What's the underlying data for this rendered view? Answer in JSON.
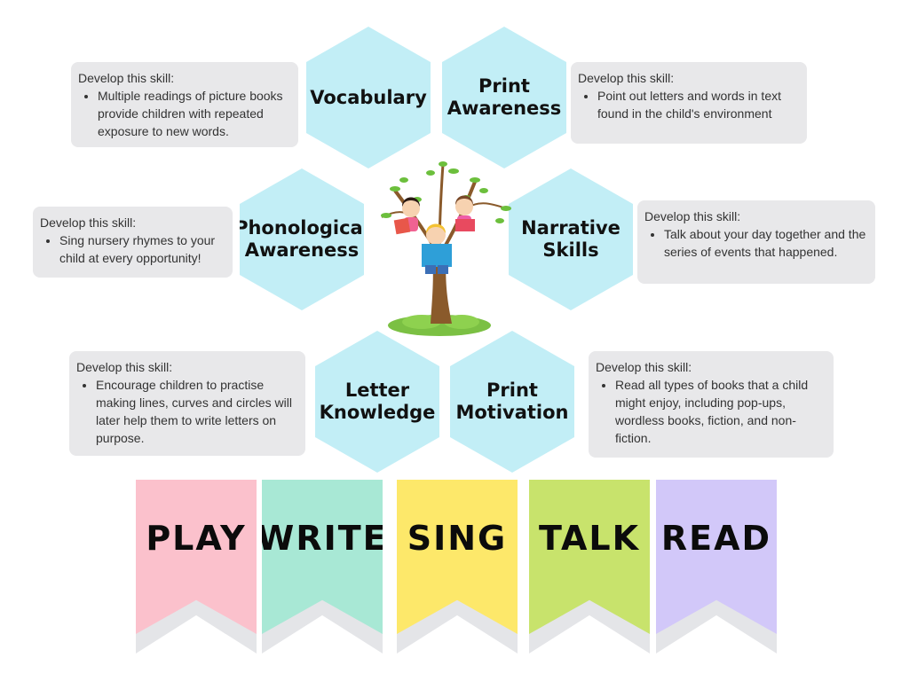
{
  "skills": [
    {
      "id": "vocabulary",
      "title": "Vocabulary",
      "heading": "Develop this skill:",
      "tip": "Multiple readings of picture books provide children with repeated exposure to new words."
    },
    {
      "id": "print-awareness",
      "title": "Print\nAwareness",
      "heading": "Develop this skill:",
      "tip": "Point out letters and words in text found in the child's environment"
    },
    {
      "id": "phonological-awareness",
      "title": "Phonological\nAwareness",
      "heading": "Develop this skill:",
      "tip": "Sing nursery rhymes to your child at every opportunity!"
    },
    {
      "id": "narrative-skills",
      "title": "Narrative\nSkills",
      "heading": "Develop this skill:",
      "tip": "Talk about your day together and the series of events that happened."
    },
    {
      "id": "letter-knowledge",
      "title": "Letter\nKnowledge",
      "heading": "Develop this skill:",
      "tip": "Encourage children to practise making lines, curves and circles will later help them to write letters on purpose."
    },
    {
      "id": "print-motivation",
      "title": "Print\nMotivation",
      "heading": "Develop this skill:",
      "tip": "Read all types of books that a child might enjoy, including pop-ups, wordless books, fiction, and non-fiction."
    }
  ],
  "banners": [
    {
      "word": "PLAY",
      "color": "#fbc1cc"
    },
    {
      "word": "WRITE",
      "color": "#a8e8d5"
    },
    {
      "word": "SING",
      "color": "#fde86a"
    },
    {
      "word": "TALK",
      "color": "#c8e36c"
    },
    {
      "word": "READ",
      "color": "#d2c8f9"
    }
  ],
  "colors": {
    "hexagon": "#c2eef6",
    "tip_box": "#e8e8ea"
  },
  "illustration": "children-reading-in-tree"
}
